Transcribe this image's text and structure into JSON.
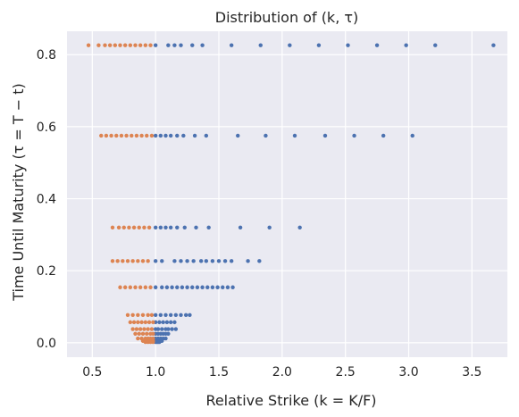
{
  "chart_data": {
    "type": "scatter",
    "title": "Distribution of (k, τ)",
    "xlabel": "Relative Strike (k = K/F)",
    "ylabel": "Time Until Maturity (τ = T − t)",
    "xlim": [
      0.3,
      3.78
    ],
    "ylim": [
      -0.04,
      0.865
    ],
    "xticks": [
      0.5,
      1.0,
      1.5,
      2.0,
      2.5,
      3.0,
      3.5
    ],
    "xtick_labels": [
      "0.5",
      "1.0",
      "1.5",
      "2.0",
      "2.5",
      "3.0",
      "3.5"
    ],
    "yticks": [
      0.0,
      0.2,
      0.4,
      0.6,
      0.8
    ],
    "ytick_labels": [
      "0.0",
      "0.2",
      "0.4",
      "0.6",
      "0.8"
    ],
    "grid": true,
    "legend": "none",
    "colors": {
      "background": "#eaeaf2",
      "grid": "#ffffff",
      "series_1": "#4c72b0",
      "series_2": "#dd8452"
    },
    "series": [
      {
        "color": "#4c72b0",
        "points": [
          [
            1.0,
            0.826
          ],
          [
            1.1,
            0.826
          ],
          [
            1.15,
            0.826
          ],
          [
            1.2,
            0.826
          ],
          [
            1.29,
            0.826
          ],
          [
            1.37,
            0.826
          ],
          [
            1.6,
            0.826
          ],
          [
            1.83,
            0.826
          ],
          [
            2.06,
            0.826
          ],
          [
            2.29,
            0.826
          ],
          [
            2.52,
            0.826
          ],
          [
            2.75,
            0.826
          ],
          [
            2.98,
            0.826
          ],
          [
            3.21,
            0.826
          ],
          [
            3.67,
            0.826
          ],
          [
            1.0,
            0.575
          ],
          [
            1.04,
            0.575
          ],
          [
            1.08,
            0.575
          ],
          [
            1.12,
            0.575
          ],
          [
            1.17,
            0.575
          ],
          [
            1.22,
            0.575
          ],
          [
            1.31,
            0.575
          ],
          [
            1.4,
            0.575
          ],
          [
            1.65,
            0.575
          ],
          [
            1.87,
            0.575
          ],
          [
            2.1,
            0.575
          ],
          [
            2.34,
            0.575
          ],
          [
            2.57,
            0.575
          ],
          [
            2.8,
            0.575
          ],
          [
            3.03,
            0.575
          ],
          [
            1.0,
            0.32
          ],
          [
            1.04,
            0.32
          ],
          [
            1.08,
            0.32
          ],
          [
            1.12,
            0.32
          ],
          [
            1.17,
            0.32
          ],
          [
            1.23,
            0.32
          ],
          [
            1.32,
            0.32
          ],
          [
            1.42,
            0.32
          ],
          [
            1.67,
            0.32
          ],
          [
            1.9,
            0.32
          ],
          [
            2.14,
            0.32
          ],
          [
            1.0,
            0.227
          ],
          [
            1.05,
            0.227
          ],
          [
            1.15,
            0.227
          ],
          [
            1.2,
            0.227
          ],
          [
            1.25,
            0.227
          ],
          [
            1.3,
            0.227
          ],
          [
            1.36,
            0.227
          ],
          [
            1.4,
            0.227
          ],
          [
            1.45,
            0.227
          ],
          [
            1.5,
            0.227
          ],
          [
            1.55,
            0.227
          ],
          [
            1.6,
            0.227
          ],
          [
            1.73,
            0.227
          ],
          [
            1.82,
            0.227
          ],
          [
            1.0,
            0.154
          ],
          [
            1.05,
            0.154
          ],
          [
            1.09,
            0.154
          ],
          [
            1.13,
            0.154
          ],
          [
            1.17,
            0.154
          ],
          [
            1.21,
            0.154
          ],
          [
            1.25,
            0.154
          ],
          [
            1.29,
            0.154
          ],
          [
            1.33,
            0.154
          ],
          [
            1.37,
            0.154
          ],
          [
            1.41,
            0.154
          ],
          [
            1.45,
            0.154
          ],
          [
            1.49,
            0.154
          ],
          [
            1.53,
            0.154
          ],
          [
            1.57,
            0.154
          ],
          [
            1.61,
            0.154
          ],
          [
            1.0,
            0.077
          ],
          [
            1.04,
            0.077
          ],
          [
            1.08,
            0.077
          ],
          [
            1.12,
            0.077
          ],
          [
            1.16,
            0.077
          ],
          [
            1.2,
            0.077
          ],
          [
            1.24,
            0.077
          ],
          [
            1.27,
            0.077
          ],
          [
            1.0,
            0.057
          ],
          [
            1.03,
            0.057
          ],
          [
            1.06,
            0.057
          ],
          [
            1.09,
            0.057
          ],
          [
            1.12,
            0.057
          ],
          [
            1.15,
            0.057
          ],
          [
            1.0,
            0.038
          ],
          [
            1.02,
            0.038
          ],
          [
            1.05,
            0.038
          ],
          [
            1.08,
            0.038
          ],
          [
            1.1,
            0.038
          ],
          [
            1.13,
            0.038
          ],
          [
            1.16,
            0.038
          ],
          [
            1.0,
            0.025
          ],
          [
            1.02,
            0.025
          ],
          [
            1.04,
            0.025
          ],
          [
            1.06,
            0.025
          ],
          [
            1.08,
            0.025
          ],
          [
            1.1,
            0.025
          ],
          [
            1.0,
            0.012
          ],
          [
            1.02,
            0.012
          ],
          [
            1.04,
            0.012
          ],
          [
            1.06,
            0.012
          ],
          [
            1.08,
            0.012
          ],
          [
            1.0,
            0.005
          ],
          [
            1.02,
            0.005
          ],
          [
            1.04,
            0.005
          ],
          [
            1.05,
            0.005
          ],
          [
            1.0,
            0.002
          ],
          [
            1.01,
            0.002
          ],
          [
            1.02,
            0.002
          ],
          [
            1.03,
            0.002
          ]
        ]
      },
      {
        "color": "#dd8452",
        "points": [
          [
            0.47,
            0.826
          ],
          [
            0.55,
            0.826
          ],
          [
            0.6,
            0.826
          ],
          [
            0.64,
            0.826
          ],
          [
            0.68,
            0.826
          ],
          [
            0.72,
            0.826
          ],
          [
            0.76,
            0.826
          ],
          [
            0.8,
            0.826
          ],
          [
            0.84,
            0.826
          ],
          [
            0.88,
            0.826
          ],
          [
            0.92,
            0.826
          ],
          [
            0.96,
            0.826
          ],
          [
            0.57,
            0.575
          ],
          [
            0.61,
            0.575
          ],
          [
            0.65,
            0.575
          ],
          [
            0.69,
            0.575
          ],
          [
            0.73,
            0.575
          ],
          [
            0.77,
            0.575
          ],
          [
            0.81,
            0.575
          ],
          [
            0.85,
            0.575
          ],
          [
            0.89,
            0.575
          ],
          [
            0.93,
            0.575
          ],
          [
            0.97,
            0.575
          ],
          [
            0.66,
            0.32
          ],
          [
            0.71,
            0.32
          ],
          [
            0.75,
            0.32
          ],
          [
            0.79,
            0.32
          ],
          [
            0.83,
            0.32
          ],
          [
            0.87,
            0.32
          ],
          [
            0.91,
            0.32
          ],
          [
            0.95,
            0.32
          ],
          [
            0.66,
            0.227
          ],
          [
            0.7,
            0.227
          ],
          [
            0.74,
            0.227
          ],
          [
            0.78,
            0.227
          ],
          [
            0.82,
            0.227
          ],
          [
            0.86,
            0.227
          ],
          [
            0.9,
            0.227
          ],
          [
            0.94,
            0.227
          ],
          [
            0.72,
            0.154
          ],
          [
            0.76,
            0.154
          ],
          [
            0.8,
            0.154
          ],
          [
            0.84,
            0.154
          ],
          [
            0.88,
            0.154
          ],
          [
            0.92,
            0.154
          ],
          [
            0.96,
            0.154
          ],
          [
            0.78,
            0.077
          ],
          [
            0.82,
            0.077
          ],
          [
            0.86,
            0.077
          ],
          [
            0.9,
            0.077
          ],
          [
            0.94,
            0.077
          ],
          [
            0.97,
            0.077
          ],
          [
            0.8,
            0.057
          ],
          [
            0.83,
            0.057
          ],
          [
            0.86,
            0.057
          ],
          [
            0.89,
            0.057
          ],
          [
            0.92,
            0.057
          ],
          [
            0.95,
            0.057
          ],
          [
            0.98,
            0.057
          ],
          [
            0.82,
            0.038
          ],
          [
            0.85,
            0.038
          ],
          [
            0.88,
            0.038
          ],
          [
            0.91,
            0.038
          ],
          [
            0.94,
            0.038
          ],
          [
            0.97,
            0.038
          ],
          [
            0.84,
            0.025
          ],
          [
            0.87,
            0.025
          ],
          [
            0.9,
            0.025
          ],
          [
            0.93,
            0.025
          ],
          [
            0.96,
            0.025
          ],
          [
            0.98,
            0.025
          ],
          [
            0.86,
            0.012
          ],
          [
            0.89,
            0.012
          ],
          [
            0.92,
            0.012
          ],
          [
            0.94,
            0.012
          ],
          [
            0.96,
            0.012
          ],
          [
            0.98,
            0.012
          ],
          [
            0.9,
            0.005
          ],
          [
            0.92,
            0.005
          ],
          [
            0.94,
            0.005
          ],
          [
            0.96,
            0.005
          ],
          [
            0.98,
            0.005
          ],
          [
            0.92,
            0.002
          ],
          [
            0.94,
            0.002
          ],
          [
            0.96,
            0.002
          ],
          [
            0.98,
            0.002
          ]
        ]
      }
    ]
  }
}
